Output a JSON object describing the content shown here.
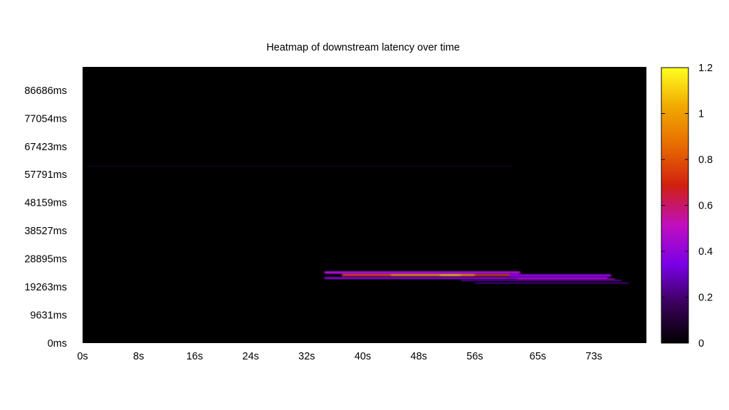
{
  "chart_data": {
    "type": "heatmap",
    "title": "Heatmap of downstream latency over time",
    "xlabel": "",
    "ylabel": "",
    "x_unit": "s",
    "y_unit": "ms",
    "xlim": [
      0,
      80.5
    ],
    "ylim": [
      0,
      94700
    ],
    "x_ticks": [
      "0s",
      "8s",
      "16s",
      "24s",
      "32s",
      "40s",
      "48s",
      "56s",
      "65s",
      "73s"
    ],
    "x_tick_values": [
      0,
      8,
      16,
      24,
      32,
      40,
      48,
      56,
      65,
      73
    ],
    "y_ticks": [
      "0ms",
      "9631ms",
      "19263ms",
      "28895ms",
      "38527ms",
      "48159ms",
      "57791ms",
      "67423ms",
      "77054ms",
      "86686ms"
    ],
    "y_tick_values": [
      0,
      9631,
      19263,
      28895,
      38527,
      48159,
      57791,
      67423,
      77054,
      86686
    ],
    "colorbar": {
      "min": 0,
      "max": 1.2,
      "ticks": [
        "0",
        "0.2",
        "0.4",
        "0.6",
        "0.8",
        "1",
        "1.2"
      ],
      "tick_values": [
        0,
        0.2,
        0.4,
        0.6,
        0.8,
        1.0,
        1.2
      ],
      "colors": [
        "#000000",
        "#3a005a",
        "#7a00e6",
        "#c00fc0",
        "#d02010",
        "#e86a00",
        "#f0a800",
        "#ffff20"
      ]
    },
    "background_color": "#000000",
    "bands": [
      {
        "x_start": 0.5,
        "x_end": 61.5,
        "y": 60600,
        "y_height": 300,
        "value": 0.08
      },
      {
        "x_start": 34.5,
        "x_end": 62.5,
        "y": 24200,
        "y_height": 900,
        "value": 0.45
      },
      {
        "x_start": 37,
        "x_end": 56,
        "y": 23300,
        "y_height": 700,
        "value": 0.75
      },
      {
        "x_start": 44,
        "x_end": 61,
        "y": 23300,
        "y_height": 500,
        "value": 0.95
      },
      {
        "x_start": 51,
        "x_end": 54,
        "y": 23300,
        "y_height": 400,
        "value": 1.1
      },
      {
        "x_start": 56,
        "x_end": 66,
        "y": 23200,
        "y_height": 500,
        "value": 0.7
      },
      {
        "x_start": 34.5,
        "x_end": 75,
        "y": 22300,
        "y_height": 700,
        "value": 0.4
      },
      {
        "x_start": 61,
        "x_end": 75.5,
        "y": 23200,
        "y_height": 900,
        "value": 0.38
      },
      {
        "x_start": 54,
        "x_end": 77,
        "y": 21500,
        "y_height": 400,
        "value": 0.28
      },
      {
        "x_start": 56,
        "x_end": 78,
        "y": 20600,
        "y_height": 300,
        "value": 0.3
      },
      {
        "x_start": 62,
        "x_end": 76,
        "y": 22000,
        "y_height": 300,
        "value": 0.5
      }
    ]
  }
}
